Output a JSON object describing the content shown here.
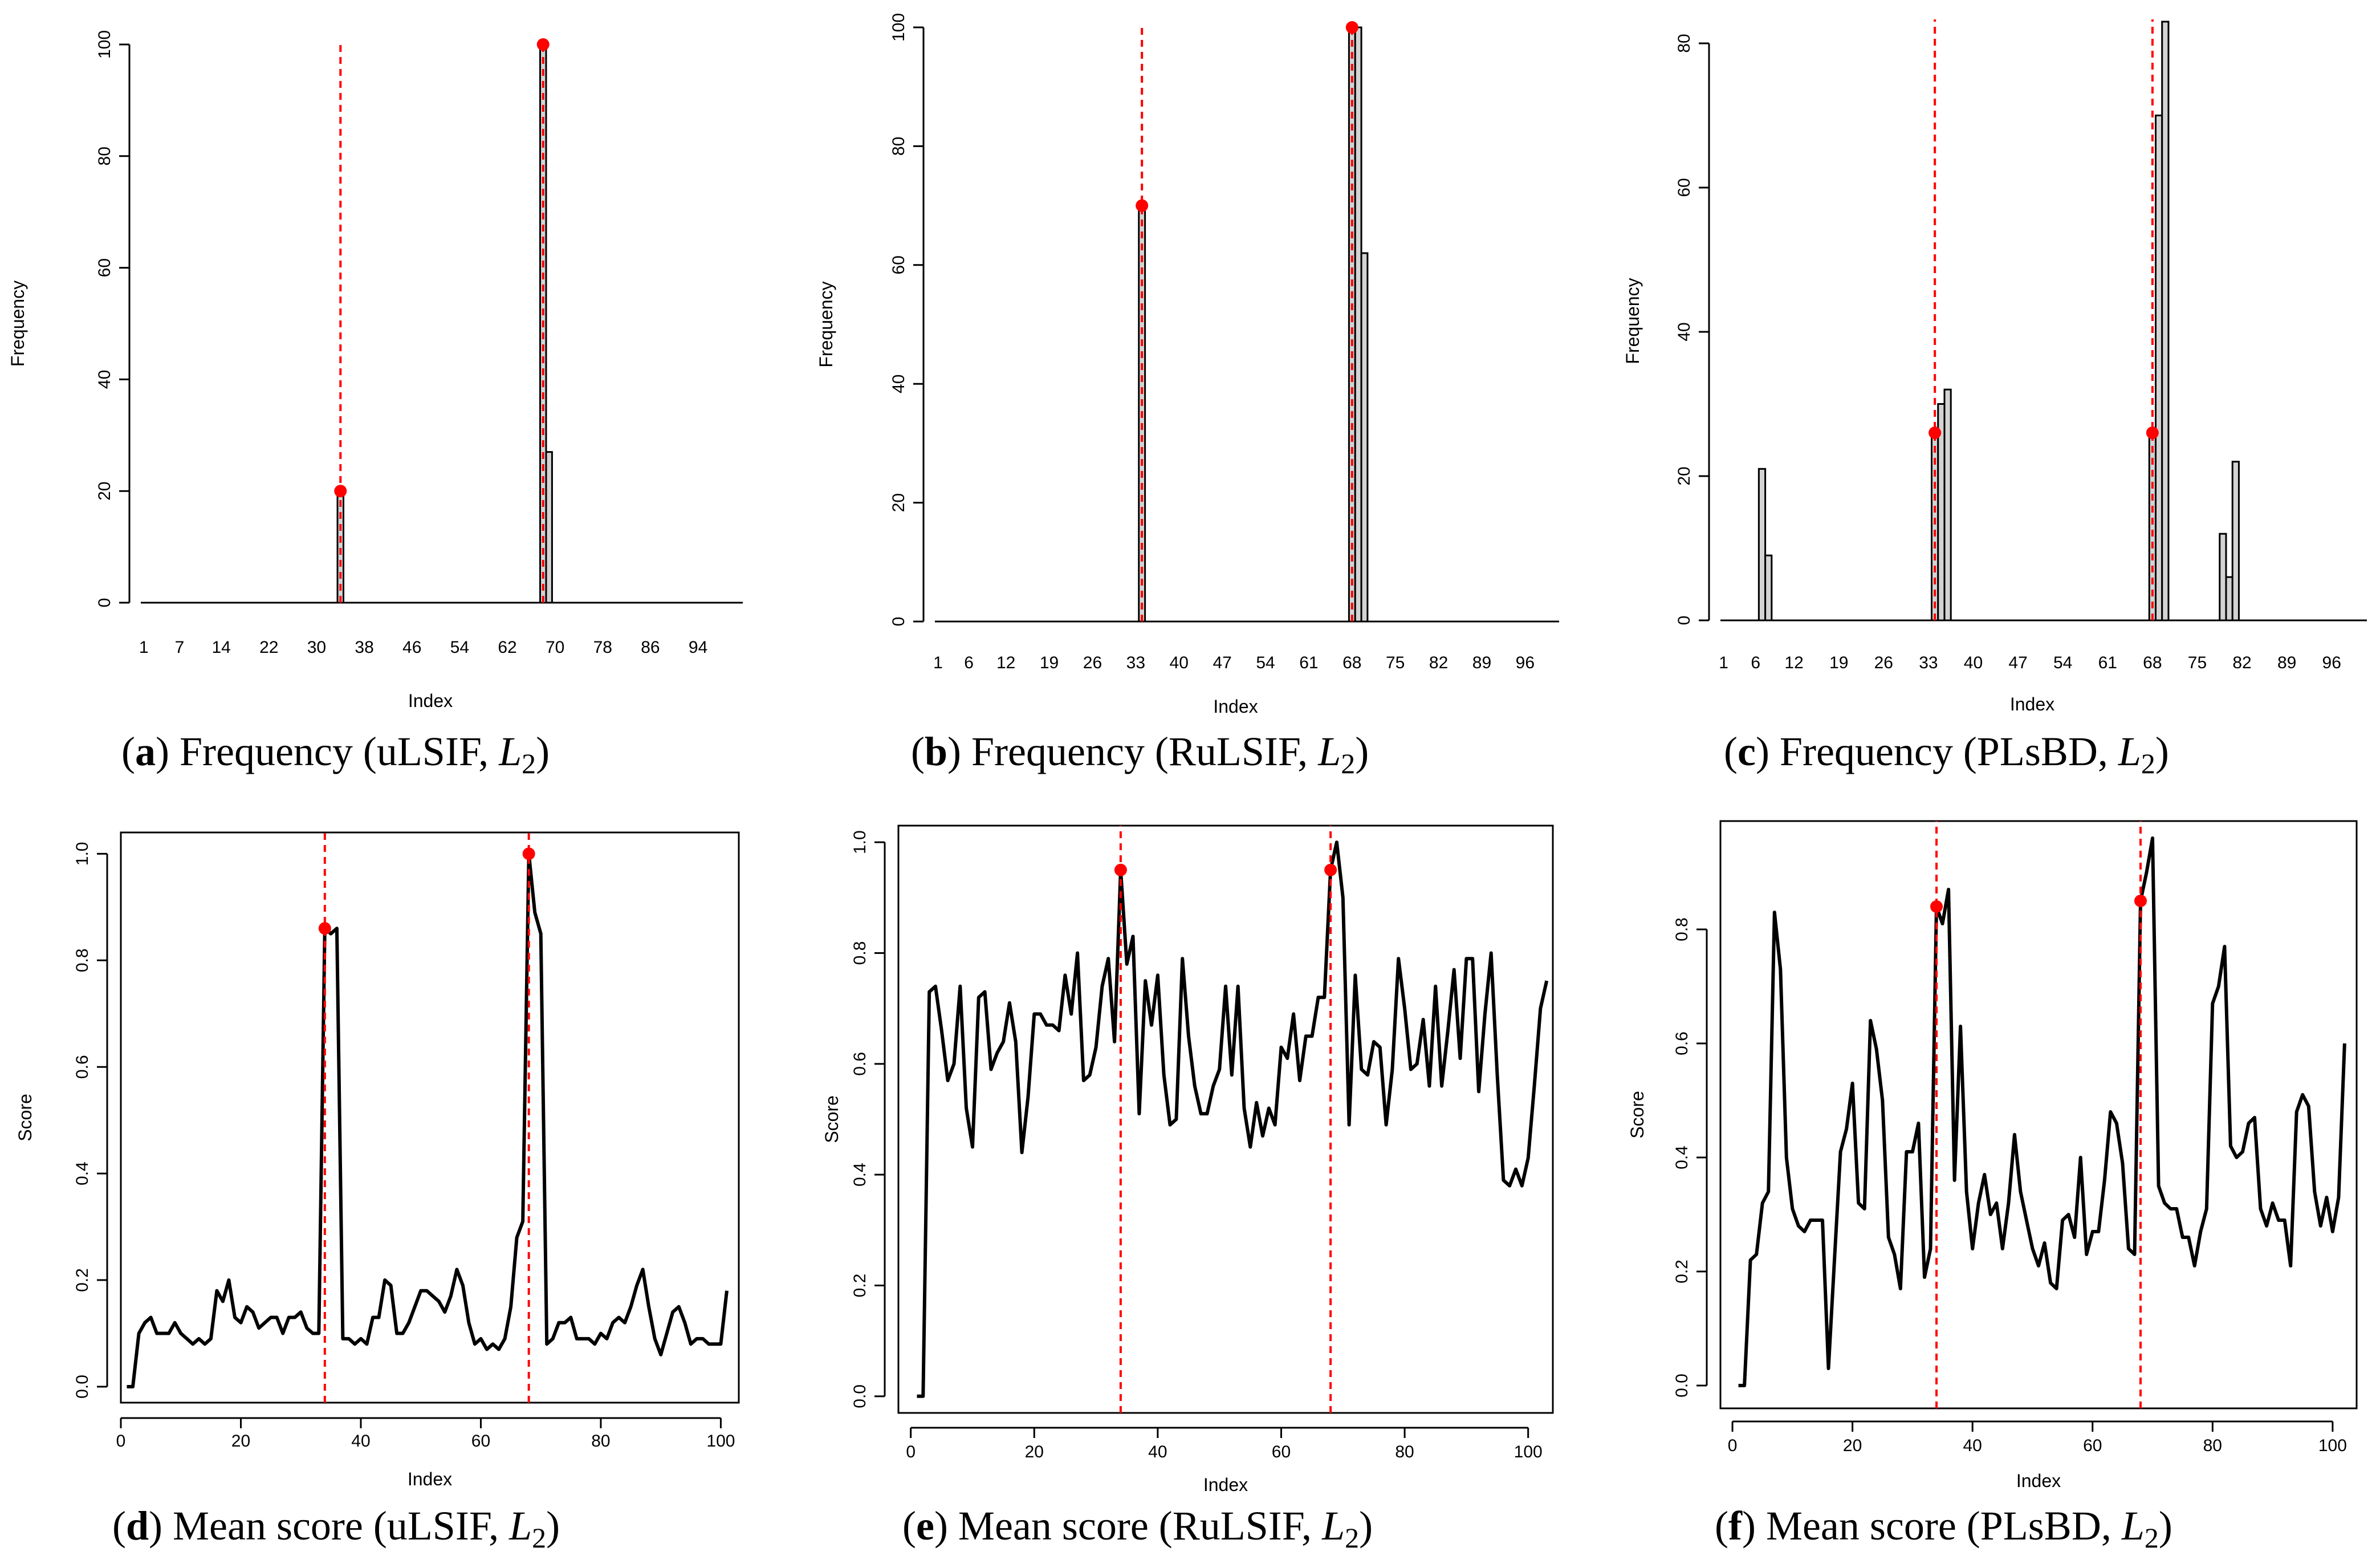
{
  "colors": {
    "bar_fill": "#d3d3d3",
    "line": "#000000",
    "changepoint": "#ff0000",
    "marker": "#ff0000"
  },
  "chart_data": [
    {
      "id": "a",
      "type": "bar",
      "caption": {
        "letter": "a",
        "text": "Frequency (uLSIF, ",
        "var": "L",
        "sub": "2",
        "close": ")"
      },
      "xlabel": "Index",
      "ylabel": "Frequency",
      "ylim": [
        0,
        100
      ],
      "yticks": [
        0,
        20,
        40,
        60,
        80,
        100
      ],
      "xlim": [
        1,
        101
      ],
      "xtick_labels": [
        "1",
        "7",
        "14",
        "22",
        "30",
        "38",
        "46",
        "54",
        "62",
        "70",
        "78",
        "86",
        "94"
      ],
      "bars": [
        {
          "index": 34,
          "value": 20
        },
        {
          "index": 68,
          "value": 100
        },
        {
          "index": 69,
          "value": 27
        }
      ],
      "changepoints": [
        34,
        68
      ],
      "markers": [
        {
          "index": 34,
          "value": 20
        },
        {
          "index": 68,
          "value": 100
        }
      ]
    },
    {
      "id": "b",
      "type": "bar",
      "caption": {
        "letter": "b",
        "text": "Frequency (RuLSIF, ",
        "var": "L",
        "sub": "2",
        "close": ")"
      },
      "xlabel": "Index",
      "ylabel": "Frequency",
      "ylim": [
        0,
        100
      ],
      "yticks": [
        0,
        20,
        40,
        60,
        80,
        100
      ],
      "xlim": [
        1,
        101
      ],
      "xtick_labels": [
        "1",
        "6",
        "12",
        "19",
        "26",
        "33",
        "40",
        "47",
        "54",
        "61",
        "68",
        "75",
        "82",
        "89",
        "96"
      ],
      "bars": [
        {
          "index": 34,
          "value": 70
        },
        {
          "index": 68,
          "value": 100
        },
        {
          "index": 69,
          "value": 100
        },
        {
          "index": 70,
          "value": 62
        }
      ],
      "changepoints": [
        34,
        68
      ],
      "markers": [
        {
          "index": 34,
          "value": 70
        },
        {
          "index": 68,
          "value": 100
        }
      ]
    },
    {
      "id": "c",
      "type": "bar",
      "caption": {
        "letter": "c",
        "text": "Frequency (PLsBD, ",
        "var": "L",
        "sub": "2",
        "close": ")"
      },
      "xlabel": "Index",
      "ylabel": "Frequency",
      "ylim": [
        0,
        83
      ],
      "yticks": [
        0,
        20,
        40,
        60,
        80
      ],
      "xlim": [
        1,
        101
      ],
      "xtick_labels": [
        "1",
        "6",
        "12",
        "19",
        "26",
        "33",
        "40",
        "47",
        "54",
        "61",
        "68",
        "75",
        "82",
        "89",
        "96"
      ],
      "bars": [
        {
          "index": 7,
          "value": 21
        },
        {
          "index": 8,
          "value": 9
        },
        {
          "index": 34,
          "value": 26
        },
        {
          "index": 35,
          "value": 30
        },
        {
          "index": 36,
          "value": 32
        },
        {
          "index": 68,
          "value": 26
        },
        {
          "index": 69,
          "value": 70
        },
        {
          "index": 70,
          "value": 83
        },
        {
          "index": 79,
          "value": 12
        },
        {
          "index": 80,
          "value": 6
        },
        {
          "index": 81,
          "value": 22
        }
      ],
      "changepoints": [
        34,
        68
      ],
      "markers": [
        {
          "index": 34,
          "value": 26
        },
        {
          "index": 68,
          "value": 26
        }
      ]
    },
    {
      "id": "d",
      "type": "line",
      "caption": {
        "letter": "d",
        "text": "Mean score (uLSIF, ",
        "var": "L",
        "sub": "2",
        "close": ")"
      },
      "xlabel": "Index",
      "ylabel": "Score",
      "xlim": [
        0,
        103
      ],
      "ylim": [
        -0.03,
        1.04
      ],
      "xticks": [
        0,
        20,
        40,
        60,
        80,
        100
      ],
      "yticks": [
        0.0,
        0.2,
        0.4,
        0.6,
        0.8,
        1.0
      ],
      "ytick_labels": [
        "0.0",
        "0.2",
        "0.4",
        "0.6",
        "0.8",
        "1.0"
      ],
      "values": [
        0,
        0,
        0.1,
        0.12,
        0.13,
        0.1,
        0.1,
        0.1,
        0.12,
        0.1,
        0.09,
        0.08,
        0.09,
        0.08,
        0.09,
        0.18,
        0.16,
        0.2,
        0.13,
        0.12,
        0.15,
        0.14,
        0.11,
        0.12,
        0.13,
        0.13,
        0.1,
        0.13,
        0.13,
        0.14,
        0.11,
        0.1,
        0.1,
        0.86,
        0.85,
        0.86,
        0.09,
        0.09,
        0.08,
        0.09,
        0.08,
        0.13,
        0.13,
        0.2,
        0.19,
        0.1,
        0.1,
        0.12,
        0.15,
        0.18,
        0.18,
        0.17,
        0.16,
        0.14,
        0.17,
        0.22,
        0.19,
        0.12,
        0.08,
        0.09,
        0.07,
        0.08,
        0.07,
        0.09,
        0.15,
        0.28,
        0.31,
        1.0,
        0.89,
        0.85,
        0.08,
        0.09,
        0.12,
        0.12,
        0.13,
        0.09,
        0.09,
        0.09,
        0.08,
        0.1,
        0.09,
        0.12,
        0.13,
        0.12,
        0.15,
        0.19,
        0.22,
        0.15,
        0.09,
        0.06,
        0.1,
        0.14,
        0.15,
        0.12,
        0.08,
        0.09,
        0.09,
        0.08,
        0.08,
        0.08,
        0.18
      ],
      "changepoints": [
        34,
        68
      ],
      "markers": [
        {
          "index": 34,
          "value": 0.86
        },
        {
          "index": 68,
          "value": 1.0
        }
      ]
    },
    {
      "id": "e",
      "type": "line",
      "caption": {
        "letter": "e",
        "text": "Mean score (RuLSIF, ",
        "var": "L",
        "sub": "2",
        "close": ")"
      },
      "xlabel": "Index",
      "ylabel": "Score",
      "xlim": [
        -2,
        104
      ],
      "ylim": [
        -0.03,
        1.03
      ],
      "xticks": [
        0,
        20,
        40,
        60,
        80,
        100
      ],
      "yticks": [
        0.0,
        0.2,
        0.4,
        0.6,
        0.8,
        1.0
      ],
      "ytick_labels": [
        "0.0",
        "0.2",
        "0.4",
        "0.6",
        "0.8",
        "1.0"
      ],
      "values": [
        0,
        0,
        0.73,
        0.74,
        0.66,
        0.57,
        0.6,
        0.74,
        0.52,
        0.45,
        0.72,
        0.73,
        0.59,
        0.62,
        0.64,
        0.71,
        0.64,
        0.44,
        0.54,
        0.69,
        0.69,
        0.67,
        0.67,
        0.66,
        0.76,
        0.69,
        0.8,
        0.57,
        0.58,
        0.63,
        0.74,
        0.79,
        0.64,
        0.95,
        0.78,
        0.83,
        0.51,
        0.75,
        0.67,
        0.76,
        0.58,
        0.49,
        0.5,
        0.79,
        0.65,
        0.56,
        0.51,
        0.51,
        0.56,
        0.59,
        0.74,
        0.58,
        0.74,
        0.52,
        0.45,
        0.53,
        0.47,
        0.52,
        0.49,
        0.63,
        0.61,
        0.69,
        0.57,
        0.65,
        0.65,
        0.72,
        0.72,
        0.95,
        1.0,
        0.9,
        0.49,
        0.76,
        0.59,
        0.58,
        0.64,
        0.63,
        0.49,
        0.59,
        0.79,
        0.7,
        0.59,
        0.6,
        0.68,
        0.56,
        0.74,
        0.56,
        0.66,
        0.77,
        0.61,
        0.79,
        0.79,
        0.55,
        0.69,
        0.8,
        0.58,
        0.39,
        0.38,
        0.41,
        0.38,
        0.43,
        0.56,
        0.7,
        0.75
      ],
      "changepoints": [
        34,
        68
      ],
      "markers": [
        {
          "index": 34,
          "value": 0.95
        },
        {
          "index": 68,
          "value": 0.95
        }
      ]
    },
    {
      "id": "f",
      "type": "line",
      "caption": {
        "letter": "f",
        "text": "Mean score (PLsBD, ",
        "var": "L",
        "sub": "2",
        "close": ")"
      },
      "xlabel": "Index",
      "ylabel": "Score",
      "xlim": [
        -2,
        104
      ],
      "ylim": [
        -0.04,
        0.99
      ],
      "xticks": [
        0,
        20,
        40,
        60,
        80,
        100
      ],
      "yticks": [
        0.0,
        0.2,
        0.4,
        0.6,
        0.8
      ],
      "ytick_labels": [
        "0.0",
        "0.2",
        "0.4",
        "0.6",
        "0.8"
      ],
      "values": [
        0,
        0,
        0.22,
        0.23,
        0.32,
        0.34,
        0.83,
        0.73,
        0.4,
        0.31,
        0.28,
        0.27,
        0.29,
        0.29,
        0.29,
        0.03,
        0.22,
        0.41,
        0.45,
        0.53,
        0.32,
        0.31,
        0.64,
        0.59,
        0.5,
        0.26,
        0.23,
        0.17,
        0.41,
        0.41,
        0.46,
        0.19,
        0.24,
        0.84,
        0.81,
        0.87,
        0.36,
        0.63,
        0.34,
        0.24,
        0.32,
        0.37,
        0.3,
        0.32,
        0.24,
        0.32,
        0.44,
        0.34,
        0.29,
        0.24,
        0.21,
        0.25,
        0.18,
        0.17,
        0.29,
        0.3,
        0.26,
        0.4,
        0.23,
        0.27,
        0.27,
        0.36,
        0.48,
        0.46,
        0.39,
        0.24,
        0.23,
        0.85,
        0.9,
        0.96,
        0.35,
        0.32,
        0.31,
        0.31,
        0.26,
        0.26,
        0.21,
        0.27,
        0.31,
        0.67,
        0.7,
        0.77,
        0.42,
        0.4,
        0.41,
        0.46,
        0.47,
        0.31,
        0.28,
        0.32,
        0.29,
        0.29,
        0.21,
        0.48,
        0.51,
        0.49,
        0.34,
        0.28,
        0.33,
        0.27,
        0.33,
        0.6
      ],
      "changepoints": [
        34,
        68
      ],
      "markers": [
        {
          "index": 34,
          "value": 0.84
        },
        {
          "index": 68,
          "value": 0.85
        }
      ]
    }
  ]
}
